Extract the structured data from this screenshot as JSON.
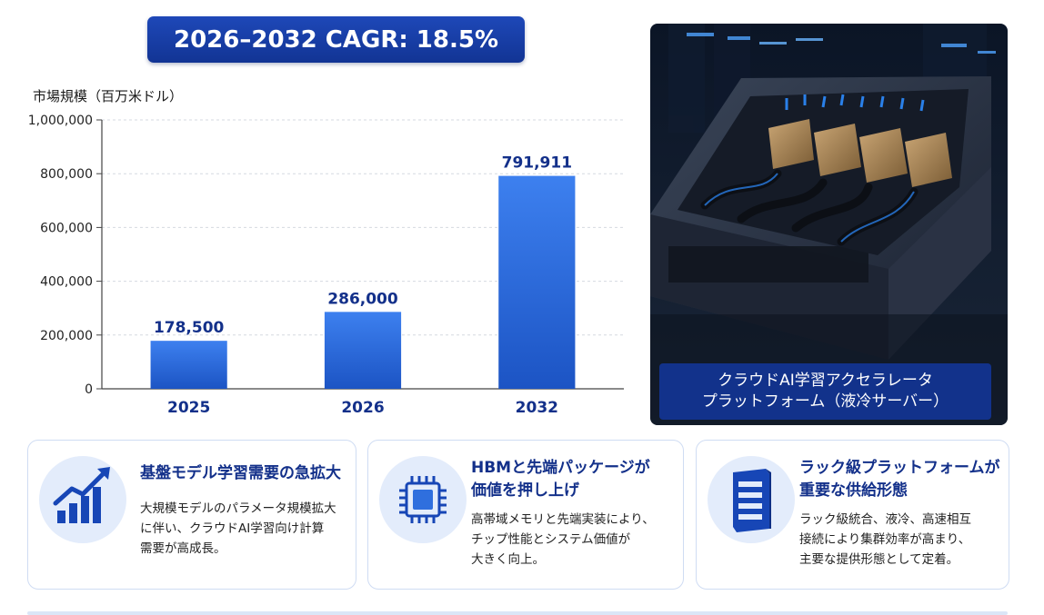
{
  "badge": {
    "text": "2026–2032 CAGR: 18.5%"
  },
  "photo": {
    "caption_line1": "クラウドAI学習アクセラレータ",
    "caption_line2": "プラットフォーム（液冷サーバー）"
  },
  "chart_data": {
    "type": "bar",
    "ylabel": "市場規模（百万米ドル）",
    "categories": [
      "2025",
      "2026",
      "2032"
    ],
    "values": [
      178500,
      286000,
      791911
    ],
    "value_labels": [
      "178,500",
      "286,000",
      "791,911"
    ],
    "yticks": [
      0,
      200000,
      400000,
      600000,
      800000,
      1000000
    ],
    "ytick_labels": [
      "0",
      "200,000",
      "400,000",
      "600,000",
      "800,000",
      "1,000,000"
    ],
    "ylim": [
      0,
      1000000
    ],
    "grid": true,
    "bar_color": "#2f6fde"
  },
  "cards": [
    {
      "icon": "growth-chart-icon",
      "title": "基盤モデル学習需要の急拡大",
      "body": [
        "大規模モデルのパラメータ規模拡大",
        "に伴い、クラウドAI学習向け計算",
        "需要が高成長。"
      ]
    },
    {
      "icon": "chip-icon",
      "title_lines": [
        "HBMと先端パッケージが",
        "価値を押し上げ"
      ],
      "body": [
        "高帯域メモリと先端実装により、",
        "チップ性能とシステム価値が",
        "大きく向上。"
      ]
    },
    {
      "icon": "server-rack-icon",
      "title_lines": [
        "ラック級プラットフォームが",
        "重要な供給形態"
      ],
      "body": [
        "ラック級統合、液冷、高速相互",
        "接続により集群効率が高まり、",
        "主要な提供形態として定着。"
      ]
    }
  ]
}
